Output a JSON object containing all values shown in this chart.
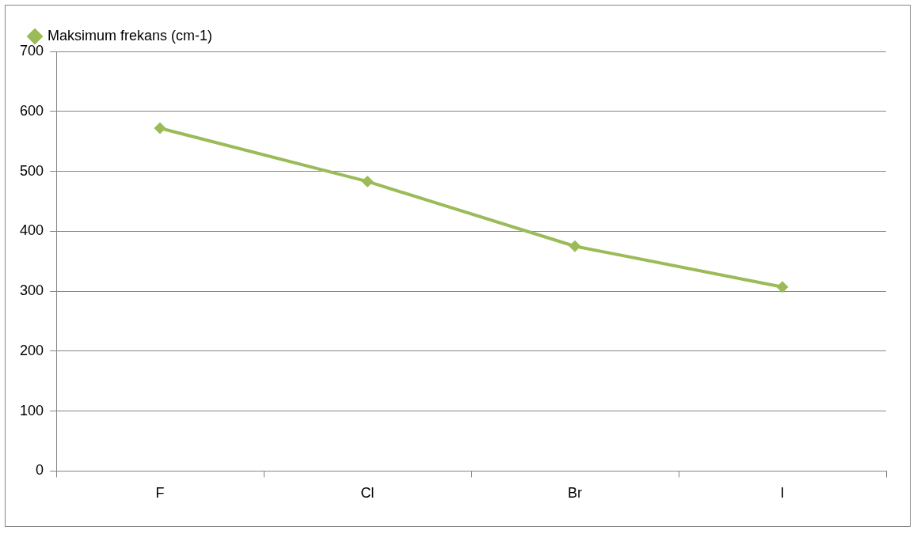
{
  "chart_data": {
    "type": "line",
    "categories": [
      "F",
      "Cl",
      "Br",
      "I"
    ],
    "series": [
      {
        "name": "Maksimum frekans (cm-1)",
        "color": "#9bbb59",
        "values": [
          572,
          483,
          375,
          307
        ]
      }
    ],
    "ylim": [
      0,
      700
    ],
    "yticks": [
      0,
      100,
      200,
      300,
      400,
      500,
      600,
      700
    ],
    "grid": "y",
    "legend": "top left",
    "marker": "diamond",
    "line_style": "solid"
  }
}
